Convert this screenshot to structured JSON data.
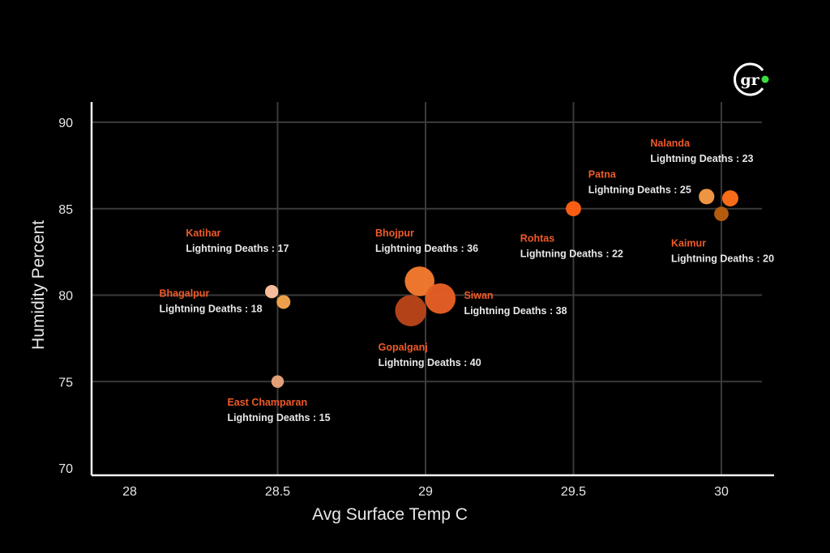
{
  "logo": {
    "text": "gr",
    "ring_color": "#ffffff",
    "dot_color": "#3ddc3d"
  },
  "chart_data": {
    "type": "scatter",
    "subtype": "bubble",
    "title": "",
    "xlabel": "Avg Surface Temp C",
    "ylabel": "Humidity Percent",
    "xlim": [
      27.85,
      30.18
    ],
    "ylim": [
      70,
      91.7
    ],
    "xticks": [
      28,
      28.5,
      29,
      29.5,
      30
    ],
    "xtick_labels": [
      "28",
      "28.5",
      "29",
      "29.5",
      "30"
    ],
    "yticks": [
      70,
      75,
      80,
      85,
      90
    ],
    "ytick_labels": [
      "70",
      "75",
      "80",
      "85",
      "90"
    ],
    "grid": true,
    "label_prefix": "Lightning Deaths : ",
    "colors": {
      "name": "#f05a28",
      "value_text": "#e8e8e8",
      "grid": "#3a3a3a",
      "axis": "#f2f2f2",
      "background": "#000000"
    },
    "points": [
      {
        "name": "Katihar",
        "x": 28.48,
        "y": 80.2,
        "deaths": 17,
        "color": "#ffc2a0"
      },
      {
        "name": "Bhagalpur",
        "x": 28.52,
        "y": 79.6,
        "deaths": 18,
        "color": "#f5a54c"
      },
      {
        "name": "East Champaran",
        "x": 28.5,
        "y": 75.0,
        "deaths": 15,
        "color": "#e8a47c"
      },
      {
        "name": "Bhojpur",
        "x": 28.98,
        "y": 80.8,
        "deaths": 36,
        "color": "#f47a2e"
      },
      {
        "name": "Siwan",
        "x": 29.05,
        "y": 79.8,
        "deaths": 38,
        "color": "#e55f25"
      },
      {
        "name": "Gopalganj",
        "x": 28.95,
        "y": 79.1,
        "deaths": 40,
        "color": "#b9441a"
      },
      {
        "name": "Rohtas",
        "x": 29.5,
        "y": 85.0,
        "deaths": 22,
        "color": "#ff6114"
      },
      {
        "name": "Kaimur",
        "x": 30.0,
        "y": 84.7,
        "deaths": 20,
        "color": "#b85e10"
      },
      {
        "name": "Nalanda",
        "x": 29.95,
        "y": 85.7,
        "deaths": 23,
        "color": "#f59a45"
      },
      {
        "name": "Patna",
        "x": 30.03,
        "y": 85.6,
        "deaths": 25,
        "color": "#ff6f1a"
      }
    ],
    "annotations": [
      {
        "name": "Katihar",
        "value": "Lightning Deaths : 17",
        "ax": 28.19,
        "ay": 83.4
      },
      {
        "name": "Bhagalpur",
        "value": "Lightning Deaths : 18",
        "ax": 28.1,
        "ay": 79.9
      },
      {
        "name": "East Champaran",
        "value": "Lightning Deaths : 15",
        "ax": 28.33,
        "ay": 73.6
      },
      {
        "name": "Bhojpur",
        "value": "Lightning Deaths : 36",
        "ax": 28.83,
        "ay": 83.4
      },
      {
        "name": "Siwan",
        "value": "Lightning Deaths : 38",
        "ax": 29.13,
        "ay": 79.8
      },
      {
        "name": "Gopalganj",
        "value": "Lightning Deaths : 40",
        "ax": 28.84,
        "ay": 76.8
      },
      {
        "name": "Rohtas",
        "value": "Lightning Deaths : 22",
        "ax": 29.32,
        "ay": 83.1
      },
      {
        "name": "Patna",
        "value": "Lightning Deaths : 25",
        "ax": 29.55,
        "ay": 86.8
      },
      {
        "name": "Nalanda",
        "value": "Lightning Deaths : 23",
        "ax": 29.76,
        "ay": 88.6
      },
      {
        "name": "Kaimur",
        "value": "Lightning Deaths : 20",
        "ax": 29.83,
        "ay": 82.8
      }
    ]
  }
}
